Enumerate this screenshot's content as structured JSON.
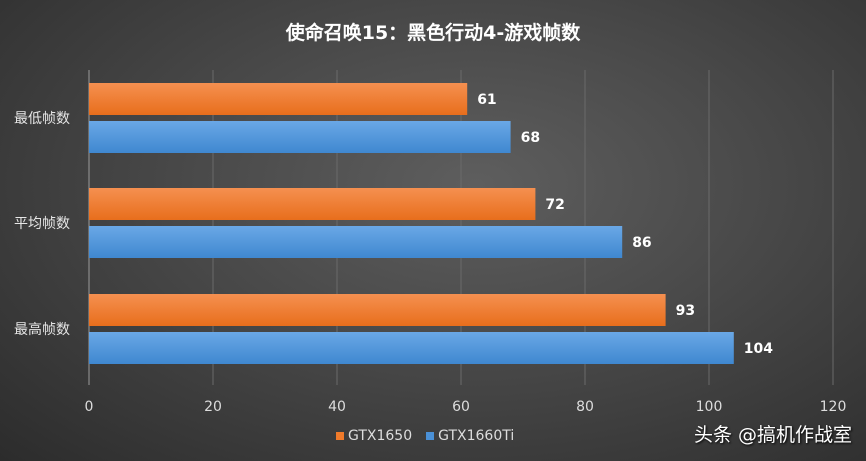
{
  "chart_data": {
    "type": "bar",
    "orientation": "horizontal",
    "title": "使命召唤15：黑色行动4-游戏帧数",
    "categories": [
      "最低帧数",
      "平均帧数",
      "最高帧数"
    ],
    "series": [
      {
        "name": "GTX1650",
        "color": "#f07a2a",
        "values": [
          61,
          72,
          93
        ]
      },
      {
        "name": "GTX1660Ti",
        "color": "#4a90d6",
        "values": [
          68,
          86,
          104
        ]
      }
    ],
    "xlim": [
      0,
      120
    ],
    "xticks": [
      0,
      20,
      40,
      60,
      80,
      100,
      120
    ],
    "grid": true,
    "legend": "bottom-center",
    "xlabel": "",
    "ylabel": ""
  },
  "watermark": "头条 @搞机作战室"
}
